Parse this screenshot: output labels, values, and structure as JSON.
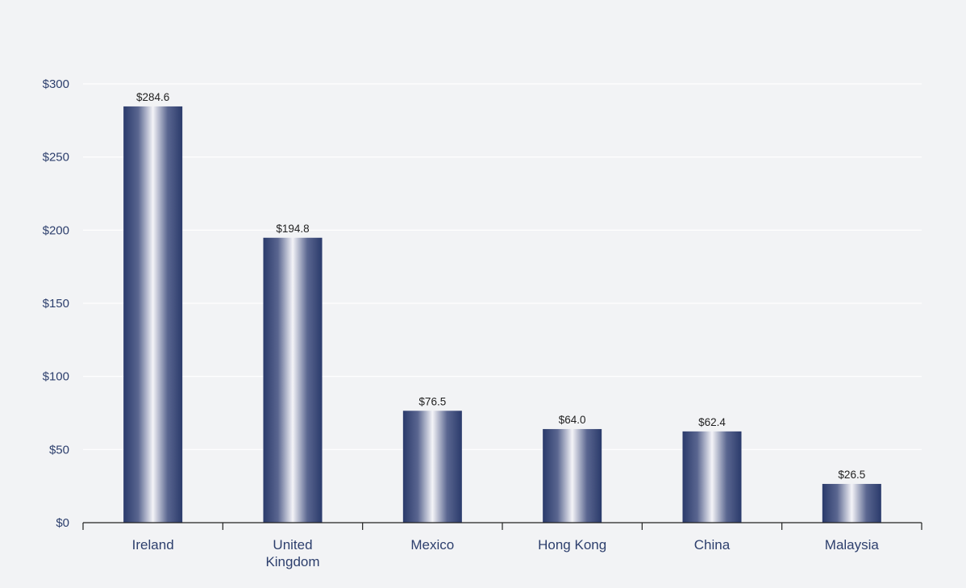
{
  "chart_data": {
    "type": "bar",
    "categories": [
      [
        "Ireland"
      ],
      [
        "United",
        "Kingdom"
      ],
      [
        "Mexico"
      ],
      [
        "Hong Kong"
      ],
      [
        "China"
      ],
      [
        "Malaysia"
      ]
    ],
    "values": [
      284.6,
      194.8,
      76.5,
      64.0,
      62.4,
      26.5
    ],
    "value_labels": [
      "$284.6",
      "$194.8",
      "$76.5",
      "$64.0",
      "$62.4",
      "$26.5"
    ],
    "title": "",
    "xlabel": "",
    "ylabel": "",
    "ylim": [
      0,
      300
    ],
    "yticks": [
      0,
      50,
      100,
      150,
      200,
      250,
      300
    ],
    "ytick_labels": [
      "$0",
      "$50",
      "$100",
      "$150",
      "$200",
      "$250",
      "$300"
    ],
    "grid": true,
    "legend": "none"
  },
  "colors": {
    "background": "#f2f3f5",
    "gridline": "#ffffff",
    "axis": "#222222",
    "bar_dark": "#2a3a6b",
    "bar_light": "#f4f4f8",
    "label_text": "#2d3f6d",
    "value_text": "#222222"
  }
}
